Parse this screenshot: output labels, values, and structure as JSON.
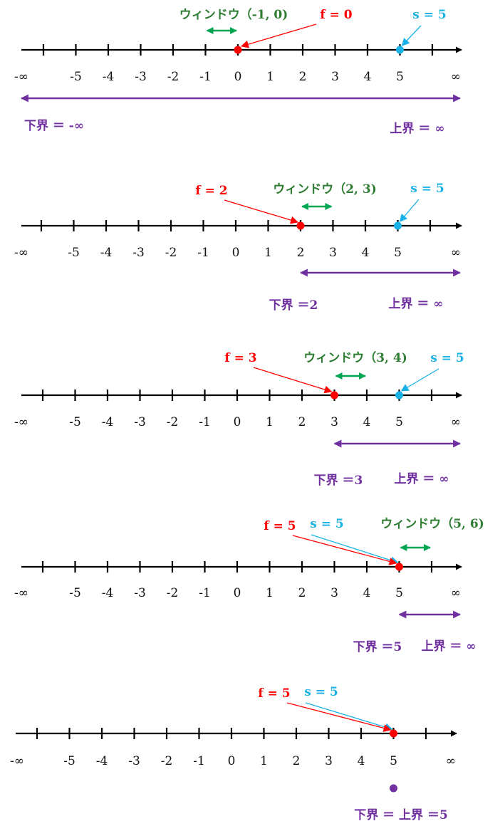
{
  "colors": {
    "axis": "#000000",
    "f": "#ff0000",
    "s": "#19b2e6",
    "window": "#00a651",
    "bound": "#7030a0",
    "window_text": "#2e7d32"
  },
  "tick_values": [
    -6,
    -5,
    -4,
    -3,
    -2,
    -1,
    0,
    1,
    2,
    3,
    4,
    5,
    6
  ],
  "tick_labels": [
    "-∞",
    "-5",
    "-4",
    "-3",
    "-2",
    "-1",
    "0",
    "1",
    "2",
    "3",
    "4",
    "5",
    "∞"
  ],
  "panels": [
    {
      "f": 0,
      "s": 5,
      "f_label": "f = 0",
      "s_label": "s = 5",
      "window": [
        -1,
        0
      ],
      "window_label": "ウィンドウ（-1, 0)",
      "bound": [
        -6.5,
        6.5
      ],
      "lower_label": "下界 ＝ -∞",
      "upper_label": "上界 ＝ ∞"
    },
    {
      "f": 2,
      "s": 5,
      "f_label": "f = 2",
      "s_label": "s = 5",
      "window": [
        2,
        3
      ],
      "window_label": "ウィンドウ（2, 3)",
      "bound": [
        2,
        6.5
      ],
      "lower_label": "下界 ＝2",
      "upper_label": "上界 ＝ ∞"
    },
    {
      "f": 3,
      "s": 5,
      "f_label": "f = 3",
      "s_label": "s = 5",
      "window": [
        3,
        4
      ],
      "window_label": "ウィンドウ（3, 4)",
      "bound": [
        3,
        6.5
      ],
      "lower_label": "下界 ＝3",
      "upper_label": "上界 ＝ ∞"
    },
    {
      "f": 5,
      "s": 5,
      "f_label": "f = 5",
      "s_label": "s = 5",
      "window": [
        5,
        6
      ],
      "window_label": "ウィンドウ（5, 6)",
      "bound": [
        5,
        6.5
      ],
      "lower_label": "下界 ＝5",
      "upper_label": "上界 ＝ ∞"
    },
    {
      "f": 5,
      "s": 5,
      "f_label": "f = 5",
      "s_label": "s = 5",
      "window": null,
      "window_label": "",
      "bound": [
        5,
        5
      ],
      "lower_label": "",
      "upper_label": "",
      "combined_label": "下界 ＝ 上界 ＝5"
    }
  ]
}
